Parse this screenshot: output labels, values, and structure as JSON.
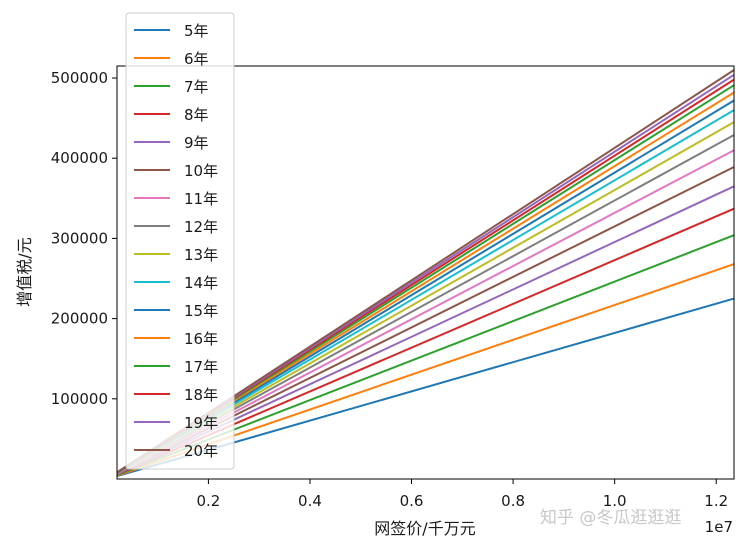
{
  "chart_data": {
    "type": "line",
    "title": "",
    "xlabel": "网签价/千万元",
    "ylabel": "增值税/元",
    "x_offset_label": "1e7",
    "xlim": [
      200000,
      12350000
    ],
    "ylim": [
      0,
      515000
    ],
    "x_ticks": [
      0.2,
      0.4,
      0.6,
      0.8,
      1.0,
      1.2
    ],
    "y_ticks": [
      100000,
      200000,
      300000,
      400000,
      500000
    ],
    "x": [
      200000,
      12350000
    ],
    "legend_position": "upper-left",
    "grid": false,
    "series": [
      {
        "name": "5年",
        "color": "#1f77b4",
        "values": [
          3600,
          225000
        ]
      },
      {
        "name": "6年",
        "color": "#ff7f0e",
        "values": [
          4300,
          268000
        ]
      },
      {
        "name": "7年",
        "color": "#2ca02c",
        "values": [
          4900,
          304000
        ]
      },
      {
        "name": "8年",
        "color": "#d62728",
        "values": [
          5450,
          337000
        ]
      },
      {
        "name": "9年",
        "color": "#9467bd",
        "values": [
          5900,
          365000
        ]
      },
      {
        "name": "10年",
        "color": "#8c564b",
        "values": [
          6300,
          389000
        ]
      },
      {
        "name": "11年",
        "color": "#e377c2",
        "values": [
          6650,
          410000
        ]
      },
      {
        "name": "12年",
        "color": "#7f7f7f",
        "values": [
          6950,
          429000
        ]
      },
      {
        "name": "13年",
        "color": "#bcbd22",
        "values": [
          7200,
          445000
        ]
      },
      {
        "name": "14年",
        "color": "#17becf",
        "values": [
          7450,
          460000
        ]
      },
      {
        "name": "15年",
        "color": "#1f77b4",
        "values": [
          7650,
          472000
        ]
      },
      {
        "name": "16年",
        "color": "#ff7f0e",
        "values": [
          7800,
          482000
        ]
      },
      {
        "name": "17年",
        "color": "#2ca02c",
        "values": [
          7950,
          491000
        ]
      },
      {
        "name": "18年",
        "color": "#d62728",
        "values": [
          8050,
          498000
        ]
      },
      {
        "name": "19年",
        "color": "#9467bd",
        "values": [
          8150,
          504000
        ]
      },
      {
        "name": "20年",
        "color": "#8c564b",
        "values": [
          8250,
          510000
        ]
      }
    ]
  },
  "watermark": "知乎 @冬瓜逛逛逛"
}
